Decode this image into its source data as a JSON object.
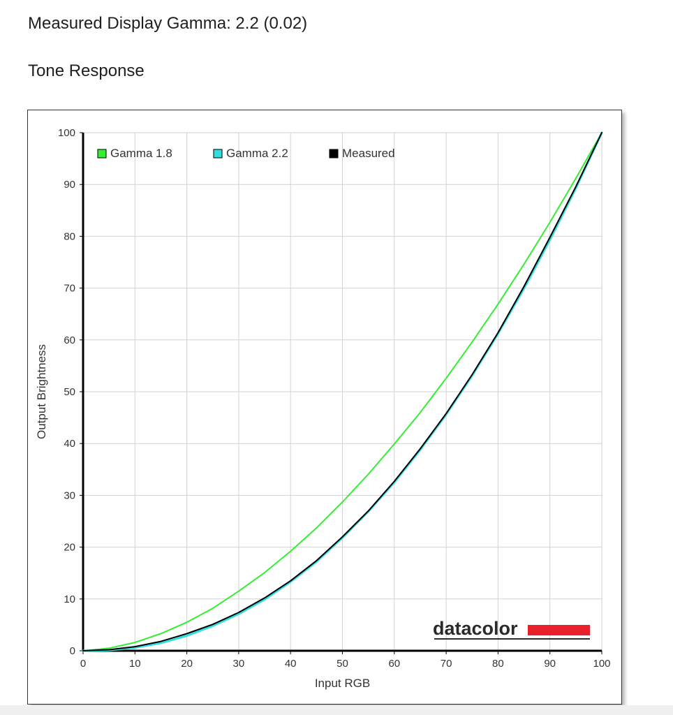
{
  "page": {
    "heading": "Measured Display Gamma: 2.2 (0.02)",
    "section_heading": "Tone Response"
  },
  "chart_data": {
    "type": "line",
    "title": "",
    "xlabel": "Input RGB",
    "ylabel": "Output Brightness",
    "xlim": [
      0,
      100
    ],
    "ylim": [
      0,
      100
    ],
    "xticks": [
      0,
      10,
      20,
      30,
      40,
      50,
      60,
      70,
      80,
      90,
      100
    ],
    "yticks": [
      0,
      10,
      20,
      30,
      40,
      50,
      60,
      70,
      80,
      90,
      100
    ],
    "grid": true,
    "legend_position": "top-left",
    "logo_text": "datacolor",
    "x": [
      0,
      5,
      10,
      15,
      20,
      25,
      30,
      35,
      40,
      45,
      50,
      55,
      60,
      65,
      70,
      75,
      80,
      85,
      90,
      95,
      100
    ],
    "series": [
      {
        "name": "Gamma 1.8",
        "color": "#33ee33",
        "values": [
          0,
          0.5,
          1.6,
          3.3,
          5.5,
          8.2,
          11.5,
          15.1,
          19.2,
          23.7,
          28.7,
          34.1,
          39.9,
          46.0,
          52.6,
          59.6,
          66.9,
          74.6,
          82.7,
          91.2,
          100
        ]
      },
      {
        "name": "Gamma 2.2",
        "color": "#33dddd",
        "values": [
          0,
          0.1,
          0.6,
          1.5,
          2.9,
          4.8,
          7.1,
          9.9,
          13.3,
          17.2,
          21.8,
          26.9,
          32.5,
          38.8,
          45.6,
          53.1,
          61.2,
          69.9,
          79.3,
          89.3,
          100
        ]
      },
      {
        "name": "Measured",
        "color": "#000000",
        "values": [
          0,
          0.2,
          0.8,
          1.8,
          3.3,
          5.1,
          7.4,
          10.2,
          13.5,
          17.4,
          22.0,
          27.0,
          32.7,
          39.0,
          45.8,
          53.3,
          61.4,
          70.3,
          79.8,
          89.6,
          100
        ]
      }
    ]
  }
}
